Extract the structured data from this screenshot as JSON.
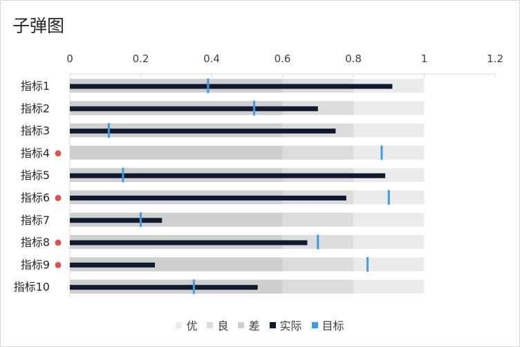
{
  "chart_data": {
    "type": "bar",
    "subtype": "bullet",
    "title": "子弹图",
    "orientation": "horizontal",
    "xlim": [
      0,
      1.2
    ],
    "x_ticks": [
      "0",
      "0.2",
      "0.4",
      "0.6",
      "0.8",
      "1",
      "1.2"
    ],
    "x_tick_values": [
      0,
      0.2,
      0.4,
      0.6,
      0.8,
      1.0,
      1.2
    ],
    "axis_position": "top",
    "grid": false,
    "legend_position": "bottom",
    "categories": [
      "指标1",
      "指标2",
      "指标3",
      "指标4",
      "指标5",
      "指标6",
      "指标7",
      "指标8",
      "指标9",
      "指标10"
    ],
    "ranges": [
      {
        "name": "差",
        "value": 0.6,
        "color": "#cfcfcf"
      },
      {
        "name": "良",
        "value": 0.8,
        "color": "#dcdcdc"
      },
      {
        "name": "优",
        "value": 1.0,
        "color": "#ebebeb"
      }
    ],
    "series": [
      {
        "name": "实际",
        "color": "#0f1a2e",
        "values": [
          0.91,
          0.7,
          0.75,
          0,
          0.89,
          0.78,
          0.26,
          0.67,
          0.24,
          0.53
        ]
      },
      {
        "name": "目标",
        "color": "#3d9be0",
        "values": [
          0.39,
          0.52,
          0.11,
          0.88,
          0.15,
          0.9,
          0.2,
          0.7,
          0.84,
          0.35
        ]
      }
    ],
    "flagged": [
      false,
      false,
      false,
      true,
      false,
      true,
      false,
      true,
      true,
      false
    ],
    "flag_color": "#e05050",
    "legend": [
      "优",
      "良",
      "差",
      "实际",
      "目标"
    ]
  }
}
